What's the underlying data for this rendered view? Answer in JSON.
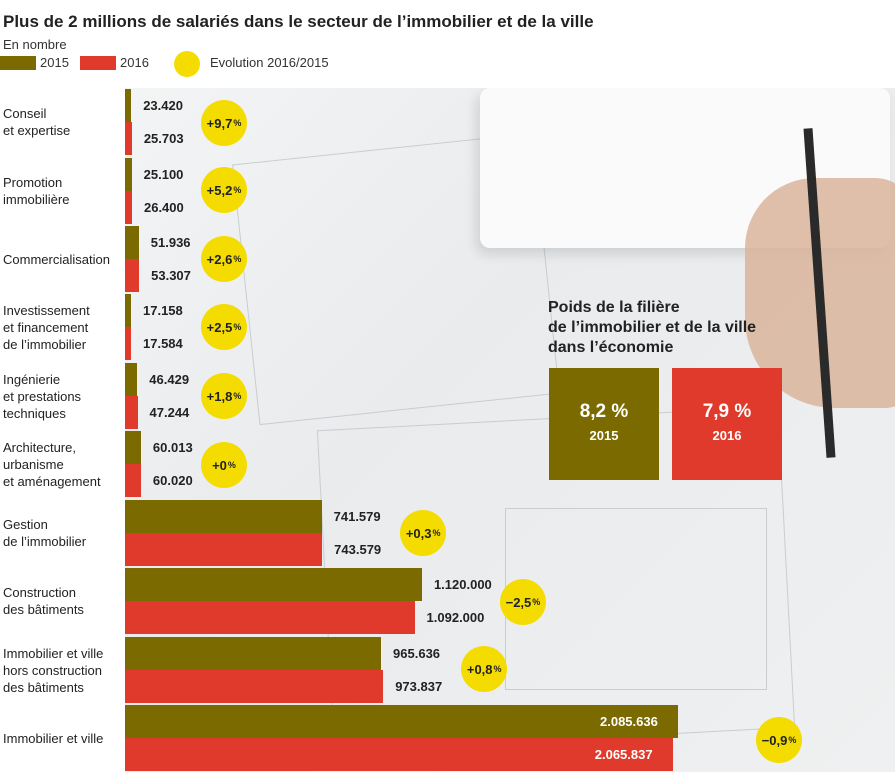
{
  "header": {
    "title": "Plus de 2 millions de salariés dans le secteur de l’immobilier et de la ville",
    "subtitle": "En nombre"
  },
  "colors": {
    "y2015": "#7a6a00",
    "y2016": "#e03a2c",
    "evolution": "#f4dc00"
  },
  "legend": {
    "label_2015": "2015",
    "label_2016": "2016",
    "label_evolution": "Evolution 2016/2015"
  },
  "chart_data": {
    "type": "bar",
    "orientation": "horizontal",
    "categories": [
      "Conseil\net expertise",
      "Promotion\nimmobilière",
      "Commercialisation",
      "Investissement\net financement\nde l’immobilier",
      "Ingénierie\net prestations\ntechniques",
      "Architecture,\nurbanisme\net aménagement",
      "Gestion\nde l’immobilier",
      "Construction\ndes bâtiments",
      "Immobilier et ville\nhors construction\ndes bâtiments",
      "Immobilier et ville"
    ],
    "series": [
      {
        "name": "2015",
        "values": [
          23420,
          25100,
          51936,
          17158,
          46429,
          60013,
          741579,
          1120000,
          965636,
          2085636
        ],
        "labels": [
          "23.420",
          "25.100",
          "51.936",
          "17.158",
          "46.429",
          "60.013",
          "741.579",
          "1.120.000",
          "965.636",
          "2.085.636"
        ]
      },
      {
        "name": "2016",
        "values": [
          25703,
          26400,
          53307,
          17584,
          47244,
          60020,
          743579,
          1092000,
          973837,
          2065837
        ],
        "labels": [
          "25.703",
          "26.400",
          "53.307",
          "17.584",
          "47.244",
          "60.020",
          "743.579",
          "1.092.000",
          "973.837",
          "2.065.837"
        ]
      }
    ],
    "evolution": [
      {
        "value": "+9,7",
        "unit": "%"
      },
      {
        "value": "+5,2",
        "unit": "%"
      },
      {
        "value": "+2,6",
        "unit": "%"
      },
      {
        "value": "+2,5",
        "unit": "%"
      },
      {
        "value": "+1,8",
        "unit": "%"
      },
      {
        "value": "+0",
        "unit": "%"
      },
      {
        "value": "+0,3",
        "unit": "%"
      },
      {
        "value": "−2,5",
        "unit": "%"
      },
      {
        "value": "+0,8",
        "unit": "%"
      },
      {
        "value": "−0,9",
        "unit": "%"
      }
    ]
  },
  "weight_panel": {
    "title": "Poids de la filière\nde l’immobilier et de la ville\ndans l’économie",
    "values": [
      {
        "value": "8,2 %",
        "year": "2015"
      },
      {
        "value": "7,9 %",
        "year": "2016"
      }
    ]
  }
}
